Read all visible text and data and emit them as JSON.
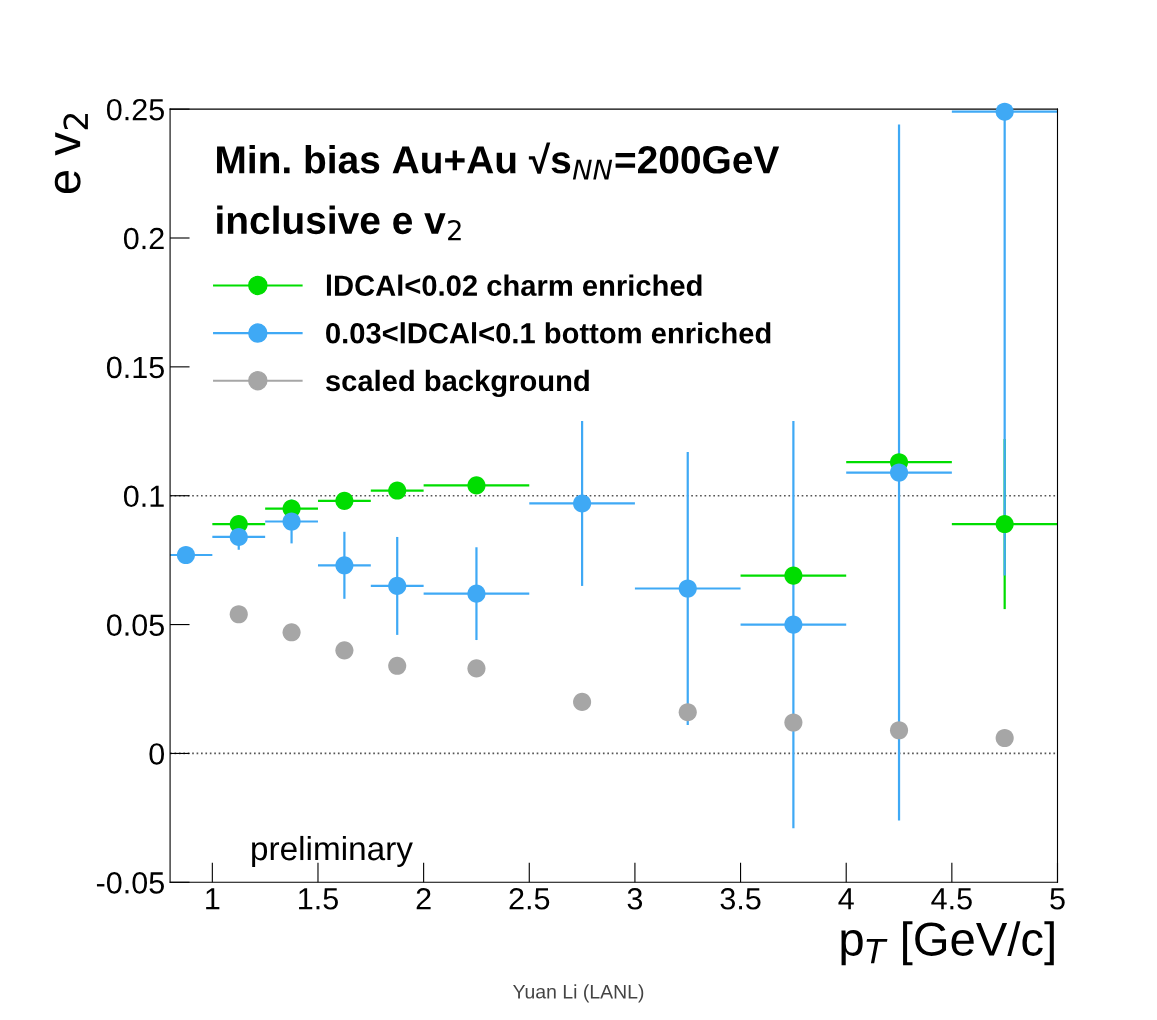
{
  "chart_data": {
    "type": "scatter",
    "x": [
      0.875,
      1.125,
      1.375,
      1.625,
      1.875,
      2.25,
      2.75,
      3.25,
      3.75,
      4.25,
      4.75
    ],
    "series": [
      {
        "name": "lDCAl<0.02 charm enriched",
        "color": "#00dd00",
        "values": [
          null,
          0.089,
          0.095,
          0.098,
          0.102,
          0.104,
          null,
          null,
          0.069,
          0.113,
          0.089
        ],
        "xerrors": [
          null,
          0.125,
          0.125,
          0.125,
          0.125,
          0.25,
          null,
          null,
          0.25,
          0.25,
          0.25
        ],
        "errors": [
          null,
          null,
          null,
          null,
          null,
          null,
          null,
          null,
          null,
          null,
          0.033
        ]
      },
      {
        "name": "0.03<lDCAl<0.1 bottom enriched",
        "color": "#3fa9f5",
        "values": [
          0.077,
          0.084,
          0.09,
          0.073,
          0.065,
          0.062,
          0.097,
          0.064,
          0.05,
          0.109,
          0.249
        ],
        "xerrors": [
          [
            0.8,
            1.0
          ],
          0.125,
          0.125,
          0.125,
          0.125,
          0.25,
          0.25,
          0.25,
          0.25,
          0.25,
          0.25
        ],
        "errors": [
          null,
          0.005,
          0.0085,
          0.013,
          0.019,
          0.018,
          0.032,
          0.053,
          0.079,
          0.135,
          [
            0.069,
            0.25
          ]
        ]
      },
      {
        "name": "scaled background",
        "color": "#a6a6a6",
        "values": [
          null,
          0.054,
          0.047,
          0.04,
          0.034,
          0.033,
          0.02,
          0.016,
          0.012,
          0.009,
          0.006
        ]
      }
    ],
    "xlabel": "p$_{T}$ [GeV/c]",
    "ylabel": "e v$_{2}$",
    "xlim": [
      0.8,
      5
    ],
    "ylim": [
      -0.05,
      0.25
    ],
    "xticks": [
      1,
      1.5,
      2,
      2.5,
      3,
      3.5,
      4,
      4.5,
      5
    ],
    "yticks": [
      -0.05,
      0,
      0.05,
      0.1,
      0.15,
      0.2,
      0.25
    ],
    "ref_lines": [
      {
        "axis": "y",
        "value": 0.1,
        "label": null,
        "color": "#555555",
        "line_style": "dotted"
      },
      {
        "axis": "y",
        "value": 0,
        "label": null,
        "color": "#555555",
        "line_style": "dotted"
      }
    ],
    "annotations": [
      "Min. bias Au+Au √s$_{NN}$=200GeV",
      "inclusive e v$_{2}$",
      "preliminary",
      "Yuan Li (LANL)"
    ],
    "marker": "circle",
    "legend": "top left",
    "grid": false
  }
}
